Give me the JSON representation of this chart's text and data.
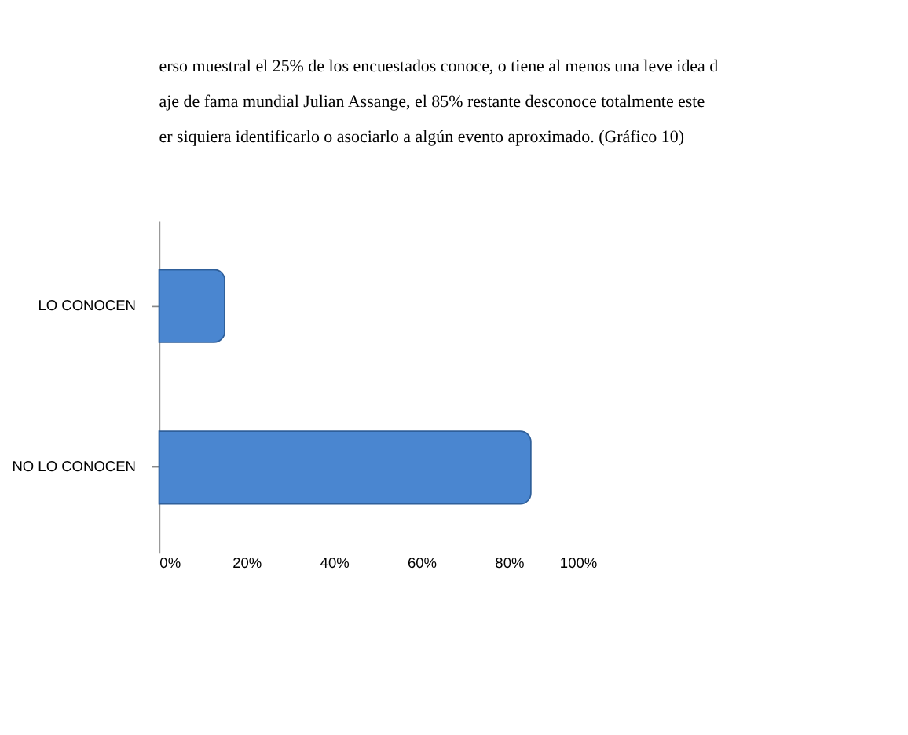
{
  "chart_data": {
    "type": "bar",
    "orientation": "horizontal",
    "categories": [
      "LO CONOCEN",
      "NO LO CONOCEN"
    ],
    "values": [
      15,
      85
    ],
    "color": "#4a86d0",
    "xlim": [
      0,
      100
    ],
    "xticks": [
      {
        "value": 0,
        "label": "0%"
      },
      {
        "value": 20,
        "label": "20%"
      },
      {
        "value": 40,
        "label": "40%"
      },
      {
        "value": 60,
        "label": "60%"
      },
      {
        "value": 80,
        "label": "80%"
      },
      {
        "value": 100,
        "label": "100%"
      }
    ],
    "grid": false,
    "annotations": [
      "erso muestral el 25% de los encuestados conoce, o tiene al menos una leve idea d",
      "aje de fama mundial Julian Assange, el 85% restante desconoce totalmente este",
      "er siquiera identificarlo o asociarlo a algún evento aproximado. (Gráfico 10)"
    ]
  }
}
